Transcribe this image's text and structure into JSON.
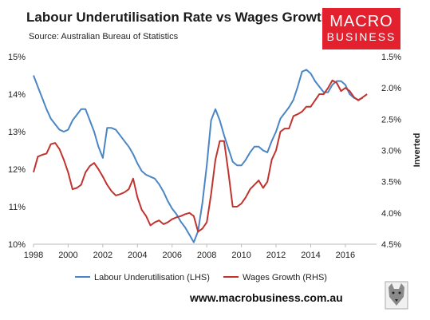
{
  "header": {
    "title": "Labour Underutilisation Rate vs Wages Growth",
    "source": "Source: Australian Bureau of Statistics"
  },
  "logo": {
    "line1": "MACRO",
    "line2": "BUSINESS",
    "color": "#e3202d"
  },
  "footer": {
    "url": "www.macrobusiness.com.au"
  },
  "chart_data": {
    "type": "line",
    "grid": false,
    "legend_position": "bottom",
    "x_ticks": [
      "1998",
      "2000",
      "2002",
      "2004",
      "2006",
      "2008",
      "2010",
      "2012",
      "2014",
      "2016"
    ],
    "x_range": [
      1998,
      2017.8
    ],
    "left_axis": {
      "ticks": [
        "15%",
        "14%",
        "13%",
        "12%",
        "11%",
        "10%"
      ],
      "range": [
        10,
        15
      ]
    },
    "right_axis": {
      "label": "Inverted",
      "inverted": true,
      "ticks": [
        "1.5%",
        "2.0%",
        "2.5%",
        "3.0%",
        "3.5%",
        "4.0%",
        "4.5%"
      ],
      "range": [
        1.5,
        4.5
      ]
    },
    "series": [
      {
        "name": "Labour Underutilisation (LHS)",
        "axis": "left",
        "color": "#4a86c5",
        "points": [
          [
            1998.0,
            14.5
          ],
          [
            1998.25,
            14.2
          ],
          [
            1998.5,
            13.9
          ],
          [
            1998.75,
            13.6
          ],
          [
            1999.0,
            13.35
          ],
          [
            1999.25,
            13.2
          ],
          [
            1999.5,
            13.05
          ],
          [
            1999.75,
            13.0
          ],
          [
            2000.0,
            13.05
          ],
          [
            2000.25,
            13.3
          ],
          [
            2000.5,
            13.45
          ],
          [
            2000.75,
            13.6
          ],
          [
            2001.0,
            13.6
          ],
          [
            2001.25,
            13.3
          ],
          [
            2001.5,
            13.0
          ],
          [
            2001.75,
            12.6
          ],
          [
            2002.0,
            12.3
          ],
          [
            2002.25,
            13.1
          ],
          [
            2002.5,
            13.1
          ],
          [
            2002.75,
            13.05
          ],
          [
            2003.0,
            12.9
          ],
          [
            2003.25,
            12.75
          ],
          [
            2003.5,
            12.6
          ],
          [
            2003.75,
            12.4
          ],
          [
            2004.0,
            12.15
          ],
          [
            2004.25,
            11.95
          ],
          [
            2004.5,
            11.85
          ],
          [
            2004.75,
            11.8
          ],
          [
            2005.0,
            11.75
          ],
          [
            2005.25,
            11.6
          ],
          [
            2005.5,
            11.4
          ],
          [
            2005.75,
            11.15
          ],
          [
            2006.0,
            10.95
          ],
          [
            2006.25,
            10.8
          ],
          [
            2006.5,
            10.6
          ],
          [
            2006.75,
            10.45
          ],
          [
            2007.0,
            10.25
          ],
          [
            2007.25,
            10.05
          ],
          [
            2007.5,
            10.35
          ],
          [
            2007.75,
            11.1
          ],
          [
            2008.0,
            12.1
          ],
          [
            2008.25,
            13.3
          ],
          [
            2008.5,
            13.6
          ],
          [
            2008.75,
            13.3
          ],
          [
            2009.0,
            12.9
          ],
          [
            2009.25,
            12.55
          ],
          [
            2009.5,
            12.2
          ],
          [
            2009.75,
            12.1
          ],
          [
            2010.0,
            12.1
          ],
          [
            2010.25,
            12.25
          ],
          [
            2010.5,
            12.45
          ],
          [
            2010.75,
            12.6
          ],
          [
            2011.0,
            12.6
          ],
          [
            2011.25,
            12.5
          ],
          [
            2011.5,
            12.45
          ],
          [
            2011.75,
            12.75
          ],
          [
            2012.0,
            13.0
          ],
          [
            2012.25,
            13.35
          ],
          [
            2012.5,
            13.5
          ],
          [
            2012.75,
            13.65
          ],
          [
            2013.0,
            13.85
          ],
          [
            2013.25,
            14.2
          ],
          [
            2013.5,
            14.6
          ],
          [
            2013.75,
            14.65
          ],
          [
            2014.0,
            14.55
          ],
          [
            2014.25,
            14.35
          ],
          [
            2014.5,
            14.2
          ],
          [
            2014.75,
            14.05
          ],
          [
            2015.0,
            14.05
          ],
          [
            2015.25,
            14.25
          ],
          [
            2015.5,
            14.35
          ],
          [
            2015.75,
            14.35
          ],
          [
            2016.0,
            14.25
          ],
          [
            2016.25,
            14.0
          ],
          [
            2016.5,
            13.9
          ],
          [
            2016.75,
            13.85
          ],
          [
            2017.0,
            13.9
          ]
        ]
      },
      {
        "name": "Wages Growth (RHS)",
        "axis": "right",
        "color": "#c0332e",
        "points": [
          [
            1998.0,
            3.35
          ],
          [
            1998.25,
            3.1
          ],
          [
            1998.5,
            3.07
          ],
          [
            1998.75,
            3.05
          ],
          [
            1999.0,
            2.9
          ],
          [
            1999.25,
            2.88
          ],
          [
            1999.5,
            2.98
          ],
          [
            1999.75,
            3.15
          ],
          [
            2000.0,
            3.35
          ],
          [
            2000.25,
            3.62
          ],
          [
            2000.5,
            3.6
          ],
          [
            2000.75,
            3.55
          ],
          [
            2001.0,
            3.35
          ],
          [
            2001.25,
            3.25
          ],
          [
            2001.5,
            3.2
          ],
          [
            2001.75,
            3.3
          ],
          [
            2002.0,
            3.42
          ],
          [
            2002.25,
            3.55
          ],
          [
            2002.5,
            3.65
          ],
          [
            2002.75,
            3.72
          ],
          [
            2003.0,
            3.7
          ],
          [
            2003.25,
            3.67
          ],
          [
            2003.5,
            3.62
          ],
          [
            2003.75,
            3.45
          ],
          [
            2004.0,
            3.75
          ],
          [
            2004.25,
            3.95
          ],
          [
            2004.5,
            4.05
          ],
          [
            2004.75,
            4.2
          ],
          [
            2005.0,
            4.15
          ],
          [
            2005.25,
            4.12
          ],
          [
            2005.5,
            4.18
          ],
          [
            2005.75,
            4.15
          ],
          [
            2006.0,
            4.1
          ],
          [
            2006.25,
            4.07
          ],
          [
            2006.5,
            4.05
          ],
          [
            2006.75,
            4.02
          ],
          [
            2007.0,
            4.0
          ],
          [
            2007.25,
            4.05
          ],
          [
            2007.5,
            4.3
          ],
          [
            2007.75,
            4.25
          ],
          [
            2008.0,
            4.15
          ],
          [
            2008.25,
            3.7
          ],
          [
            2008.5,
            3.15
          ],
          [
            2008.75,
            2.85
          ],
          [
            2009.0,
            2.85
          ],
          [
            2009.25,
            3.35
          ],
          [
            2009.5,
            3.9
          ],
          [
            2009.75,
            3.9
          ],
          [
            2010.0,
            3.85
          ],
          [
            2010.25,
            3.75
          ],
          [
            2010.5,
            3.62
          ],
          [
            2010.75,
            3.55
          ],
          [
            2011.0,
            3.48
          ],
          [
            2011.25,
            3.6
          ],
          [
            2011.5,
            3.5
          ],
          [
            2011.75,
            3.15
          ],
          [
            2012.0,
            3.0
          ],
          [
            2012.25,
            2.7
          ],
          [
            2012.5,
            2.65
          ],
          [
            2012.75,
            2.65
          ],
          [
            2013.0,
            2.45
          ],
          [
            2013.25,
            2.42
          ],
          [
            2013.5,
            2.38
          ],
          [
            2013.75,
            2.3
          ],
          [
            2014.0,
            2.3
          ],
          [
            2014.25,
            2.2
          ],
          [
            2014.5,
            2.1
          ],
          [
            2014.75,
            2.1
          ],
          [
            2015.0,
            2.0
          ],
          [
            2015.25,
            1.88
          ],
          [
            2015.5,
            1.92
          ],
          [
            2015.75,
            2.05
          ],
          [
            2016.0,
            2.0
          ],
          [
            2016.25,
            2.05
          ],
          [
            2016.5,
            2.15
          ],
          [
            2016.75,
            2.2
          ],
          [
            2017.0,
            2.15
          ],
          [
            2017.25,
            2.1
          ]
        ]
      }
    ]
  }
}
